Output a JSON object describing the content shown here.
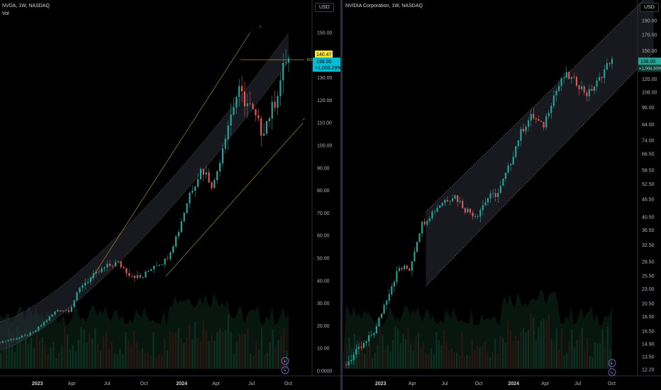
{
  "left_chart": {
    "title": "NVDA, 1W, NASDAQ",
    "indicator": "Vol",
    "currency": "USD",
    "y_ticks": [
      "150.00",
      "140.00",
      "130.00",
      "120.00",
      "110.00",
      "100.00",
      "90.00",
      "80.00",
      "70.00",
      "60.00",
      "50.00",
      "40.00",
      "30.00",
      "20.00",
      "10.00",
      "0.0000"
    ],
    "x_ticks": [
      {
        "label": "2023",
        "bold": true
      },
      {
        "label": "Apr",
        "bold": false
      },
      {
        "label": "Jul",
        "bold": false
      },
      {
        "label": "Oct",
        "bold": false
      },
      {
        "label": "2024",
        "bold": true
      },
      {
        "label": "Apr",
        "bold": false
      },
      {
        "label": "Jul",
        "bold": false
      },
      {
        "label": "Oct",
        "bold": false
      }
    ],
    "level_label": "140.47",
    "price_label": "138.00",
    "change_label": "+1,003.29%",
    "line_tag": "R/S",
    "colors": {
      "up": "#26a69a",
      "down": "#ef5350",
      "fib": "#c9a227",
      "price_tag": "#00bcd4",
      "level_tag": "#ffeb3b"
    }
  },
  "right_chart": {
    "title": "NVIDIA Corporation, 1W, NASDAQ",
    "currency": "USD",
    "y_ticks": [
      "190.00",
      "170.00",
      "150.00",
      "138.00",
      "120.00",
      "108.00",
      "96.00",
      "84.00",
      "74.00",
      "66.50",
      "58.50",
      "52.50",
      "46.50",
      "40.50",
      "36.50",
      "32.50",
      "28.50",
      "25.50",
      "23.00",
      "20.50",
      "18.50",
      "16.50",
      "14.90",
      "13.50",
      "12.20"
    ],
    "x_ticks": [
      {
        "label": "2023",
        "bold": true
      },
      {
        "label": "Apr",
        "bold": false
      },
      {
        "label": "Jul",
        "bold": false
      },
      {
        "label": "Oct",
        "bold": false
      },
      {
        "label": "2024",
        "bold": true
      },
      {
        "label": "Apr",
        "bold": false
      },
      {
        "label": "Jul",
        "bold": false
      },
      {
        "label": "Oct",
        "bold": false
      }
    ],
    "price_label": "138.00",
    "change_label": "+1,004.30%",
    "colors": {
      "up": "#26a69a",
      "down": "#ef5350",
      "price_tag": "#26a69a",
      "channel": "#9598a1"
    }
  },
  "chart_data": {
    "type": "candlestick",
    "symbol": "NVDA",
    "interval": "1W",
    "exchange": "NASDAQ",
    "x_range": [
      "2022-10",
      "2024-10"
    ],
    "y_range_left": [
      0,
      150
    ],
    "y_scale_right": "log",
    "close_points": [
      {
        "x": "2022-10",
        "y": 12.5
      },
      {
        "x": "2022-12",
        "y": 15
      },
      {
        "x": "2023-01",
        "y": 17
      },
      {
        "x": "2023-02",
        "y": 22
      },
      {
        "x": "2023-03",
        "y": 27
      },
      {
        "x": "2023-04",
        "y": 27
      },
      {
        "x": "2023-05",
        "y": 38
      },
      {
        "x": "2023-06",
        "y": 42
      },
      {
        "x": "2023-07",
        "y": 46
      },
      {
        "x": "2023-08",
        "y": 48
      },
      {
        "x": "2023-09",
        "y": 43
      },
      {
        "x": "2023-10",
        "y": 41
      },
      {
        "x": "2023-11",
        "y": 47
      },
      {
        "x": "2023-12",
        "y": 49
      },
      {
        "x": "2024-01",
        "y": 61
      },
      {
        "x": "2024-02",
        "y": 79
      },
      {
        "x": "2024-03",
        "y": 90
      },
      {
        "x": "2024-04",
        "y": 82
      },
      {
        "x": "2024-05",
        "y": 106
      },
      {
        "x": "2024-06",
        "y": 124
      },
      {
        "x": "2024-07",
        "y": 117
      },
      {
        "x": "2024-08",
        "y": 106
      },
      {
        "x": "2024-09",
        "y": 118
      },
      {
        "x": "2024-10",
        "y": 138
      }
    ],
    "last_price": 138.0,
    "high_level": 140.47,
    "change_percent": 1003.29
  }
}
